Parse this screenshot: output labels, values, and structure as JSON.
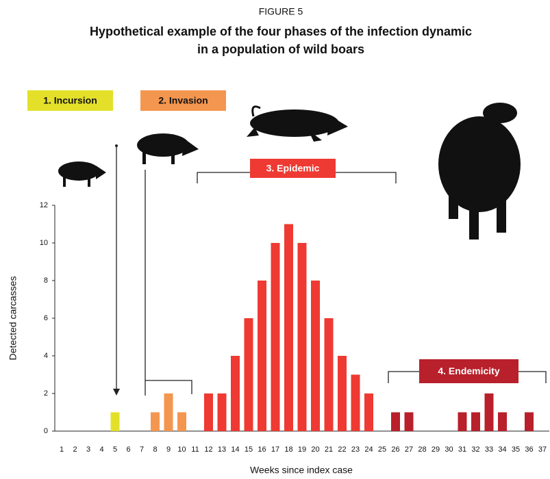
{
  "chart_data": {
    "type": "bar",
    "supertitle": "FIGURE 5",
    "title_lines": [
      "Hypothetical example of the four phases of the infection dynamic",
      "in a population of wild boars"
    ],
    "ylabel": "Detected carcasses",
    "xlabel": "Weeks since index case",
    "categories": [
      "1",
      "2",
      "3",
      "4",
      "5",
      "6",
      "7",
      "8",
      "9",
      "10",
      "11",
      "12",
      "13",
      "14",
      "15",
      "16",
      "17",
      "18",
      "19",
      "20",
      "21",
      "22",
      "23",
      "24",
      "25",
      "26",
      "27",
      "28",
      "29",
      "30",
      "31",
      "32",
      "33",
      "34",
      "35",
      "36",
      "37"
    ],
    "series": [
      {
        "name": "1. Incursion",
        "color": "#e4e02a",
        "text_color": "#111111",
        "values": [
          0,
          0,
          0,
          0,
          1,
          0,
          null,
          null,
          null,
          null,
          null,
          null,
          null,
          null,
          null,
          null,
          null,
          null,
          null,
          null,
          null,
          null,
          null,
          null,
          null,
          null,
          null,
          null,
          null,
          null,
          null,
          null,
          null,
          null,
          null,
          null,
          null
        ]
      },
      {
        "name": "2. Invasion",
        "color": "#f3964f",
        "text_color": "#111111",
        "values": [
          null,
          null,
          null,
          null,
          null,
          null,
          0,
          1,
          2,
          1,
          null,
          null,
          null,
          null,
          null,
          null,
          null,
          null,
          null,
          null,
          null,
          null,
          null,
          null,
          null,
          null,
          null,
          null,
          null,
          null,
          null,
          null,
          null,
          null,
          null,
          null,
          null
        ]
      },
      {
        "name": "3. Epidemic",
        "color": "#ee3a32",
        "text_color": "#ffffff",
        "values": [
          null,
          null,
          null,
          null,
          null,
          null,
          null,
          null,
          null,
          null,
          0,
          2,
          2,
          4,
          6,
          8,
          10,
          11,
          10,
          8,
          6,
          4,
          3,
          2,
          0,
          null,
          null,
          null,
          null,
          null,
          null,
          null,
          null,
          null,
          null,
          null,
          null
        ]
      },
      {
        "name": "4. Endemicity",
        "color": "#b8202b",
        "text_color": "#ffffff",
        "values": [
          null,
          null,
          null,
          null,
          null,
          null,
          null,
          null,
          null,
          null,
          null,
          null,
          null,
          null,
          null,
          null,
          null,
          null,
          null,
          null,
          null,
          null,
          null,
          null,
          null,
          1,
          1,
          0,
          0,
          0,
          1,
          1,
          2,
          1,
          0,
          1,
          0
        ]
      }
    ],
    "ylim": [
      0,
      12
    ],
    "yticks": [
      0,
      2,
      4,
      6,
      8,
      10,
      12
    ]
  }
}
